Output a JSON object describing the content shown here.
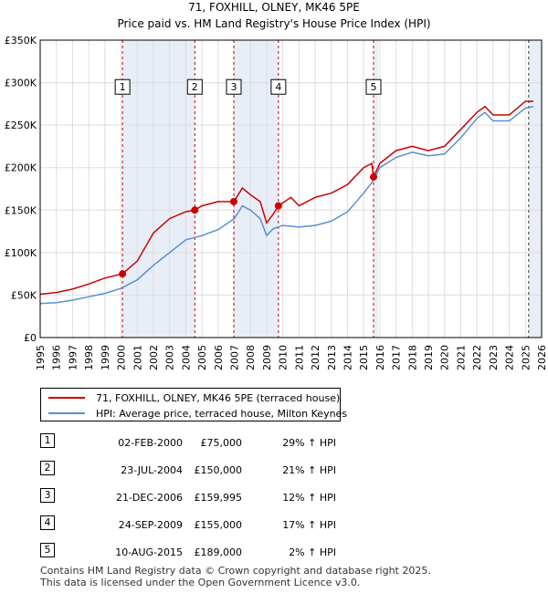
{
  "chart_data": {
    "type": "line",
    "title": "71, FOXHILL, OLNEY, MK46 5PE",
    "subtitle": "Price paid vs. HM Land Registry's House Price Index (HPI)",
    "xlim": [
      1995,
      2026
    ],
    "ylim": [
      0,
      350000
    ],
    "x_ticks": [
      "1995",
      "1996",
      "1997",
      "1998",
      "1999",
      "2000",
      "2001",
      "2002",
      "2003",
      "2004",
      "2005",
      "2006",
      "2007",
      "2008",
      "2009",
      "2010",
      "2011",
      "2012",
      "2013",
      "2014",
      "2015",
      "2016",
      "2017",
      "2018",
      "2019",
      "2020",
      "2021",
      "2022",
      "2023",
      "2024",
      "2025",
      "2026"
    ],
    "y_ticks": [
      {
        "value": 0,
        "label": "£0"
      },
      {
        "value": 50000,
        "label": "£50K"
      },
      {
        "value": 100000,
        "label": "£100K"
      },
      {
        "value": 150000,
        "label": "£150K"
      },
      {
        "value": 200000,
        "label": "£200K"
      },
      {
        "value": 250000,
        "label": "£250K"
      },
      {
        "value": 300000,
        "label": "£300K"
      },
      {
        "value": 350000,
        "label": "£350K"
      }
    ],
    "grid": true,
    "shaded_ranges": [
      [
        2000.09,
        2004.56
      ],
      [
        2006.97,
        2009.73
      ],
      [
        2015.61,
        2015.9
      ],
      [
        2025.2,
        2026
      ]
    ],
    "series": [
      {
        "name": "71, FOXHILL, OLNEY, MK46 5PE (terraced house)",
        "color": "#cc0000",
        "x": [
          1995,
          1996,
          1997,
          1998,
          1999,
          2000.09,
          2001,
          2002,
          2003,
          2004,
          2004.56,
          2005,
          2006,
          2006.97,
          2007.5,
          2008,
          2008.6,
          2009,
          2009.4,
          2009.73,
          2010.5,
          2011,
          2012,
          2013,
          2014,
          2015,
          2015.5,
          2015.61,
          2016,
          2017,
          2018,
          2019,
          2020,
          2021,
          2022,
          2022.5,
          2023,
          2024,
          2025,
          2025.5
        ],
        "values": [
          51000,
          53000,
          57000,
          63000,
          70000,
          75000,
          90000,
          123000,
          140000,
          148000,
          150000,
          155000,
          160000,
          159995,
          176000,
          168000,
          160000,
          135000,
          145000,
          155000,
          165000,
          155000,
          165000,
          170000,
          180000,
          200000,
          205000,
          189000,
          205000,
          220000,
          225000,
          220000,
          225000,
          245000,
          265000,
          272000,
          262000,
          262000,
          278000,
          278000
        ]
      },
      {
        "name": "HPI: Average price, terraced house, Milton Keynes",
        "color": "#5b8fd0",
        "x": [
          1995,
          1996,
          1997,
          1998,
          1999,
          2000,
          2001,
          2002,
          2003,
          2004,
          2005,
          2006,
          2007,
          2007.5,
          2008,
          2008.6,
          2009,
          2009.4,
          2010,
          2011,
          2012,
          2013,
          2014,
          2015,
          2015.61,
          2016,
          2017,
          2018,
          2019,
          2020,
          2021,
          2022,
          2022.5,
          2023,
          2024,
          2025,
          2025.5
        ],
        "values": [
          40000,
          41000,
          44000,
          48000,
          52000,
          58000,
          68000,
          85000,
          100000,
          115000,
          120000,
          127000,
          140000,
          155000,
          150000,
          140000,
          120000,
          128000,
          132000,
          130000,
          132000,
          137000,
          148000,
          170000,
          185000,
          200000,
          212000,
          218000,
          214000,
          216000,
          235000,
          258000,
          265000,
          255000,
          255000,
          270000,
          272000
        ]
      }
    ],
    "sales": [
      {
        "num": "1",
        "x": 2000.09,
        "price": 75000
      },
      {
        "num": "2",
        "x": 2004.56,
        "price": 150000
      },
      {
        "num": "3",
        "x": 2006.97,
        "price": 159995
      },
      {
        "num": "4",
        "x": 2009.73,
        "price": 155000
      },
      {
        "num": "5",
        "x": 2015.61,
        "price": 189000
      }
    ],
    "marker_label_value": 295000
  },
  "legend": {
    "series1": "71, FOXHILL, OLNEY, MK46 5PE (terraced house)",
    "series2": "HPI: Average price, terraced house, Milton Keynes",
    "color1": "#cc0000",
    "color2": "#5b8fd0"
  },
  "table": [
    {
      "num": "1",
      "date": "02-FEB-2000",
      "price": "£75,000",
      "hpi": "29% ↑ HPI"
    },
    {
      "num": "2",
      "date": "23-JUL-2004",
      "price": "£150,000",
      "hpi": "21% ↑ HPI"
    },
    {
      "num": "3",
      "date": "21-DEC-2006",
      "price": "£159,995",
      "hpi": "12% ↑ HPI"
    },
    {
      "num": "4",
      "date": "24-SEP-2009",
      "price": "£155,000",
      "hpi": "17% ↑ HPI"
    },
    {
      "num": "5",
      "date": "10-AUG-2015",
      "price": "£189,000",
      "hpi": "2% ↑ HPI"
    }
  ],
  "footer": {
    "line1": "Contains HM Land Registry data © Crown copyright and database right 2025.",
    "line2": "This data is licensed under the Open Government Licence v3.0."
  }
}
